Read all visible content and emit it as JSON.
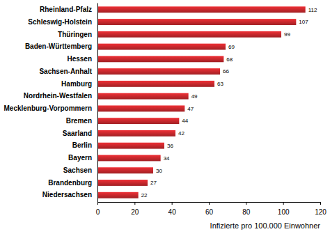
{
  "chart_data": {
    "type": "bar",
    "orientation": "horizontal",
    "categories": [
      "Rheinland-Pfalz",
      "Schleswig-Holstein",
      "Thüringen",
      "Baden-Württemberg",
      "Hessen",
      "Sachsen-Anhalt",
      "Hamburg",
      "Nordrhein-Westfalen",
      "Mecklenburg-Vorpommern",
      "Bremen",
      "Saarland",
      "Berlin",
      "Bayern",
      "Sachsen",
      "Brandenburg",
      "Niedersachsen"
    ],
    "values": [
      112,
      107,
      99,
      69,
      68,
      66,
      63,
      49,
      47,
      44,
      42,
      36,
      34,
      30,
      27,
      22
    ],
    "color": "#c8282d",
    "xlim": [
      0,
      120
    ],
    "xticks": [
      0,
      20,
      40,
      60,
      80,
      100,
      120
    ],
    "x_label": "Infizierte pro 100.000 Einwohner",
    "data_labels": true
  }
}
